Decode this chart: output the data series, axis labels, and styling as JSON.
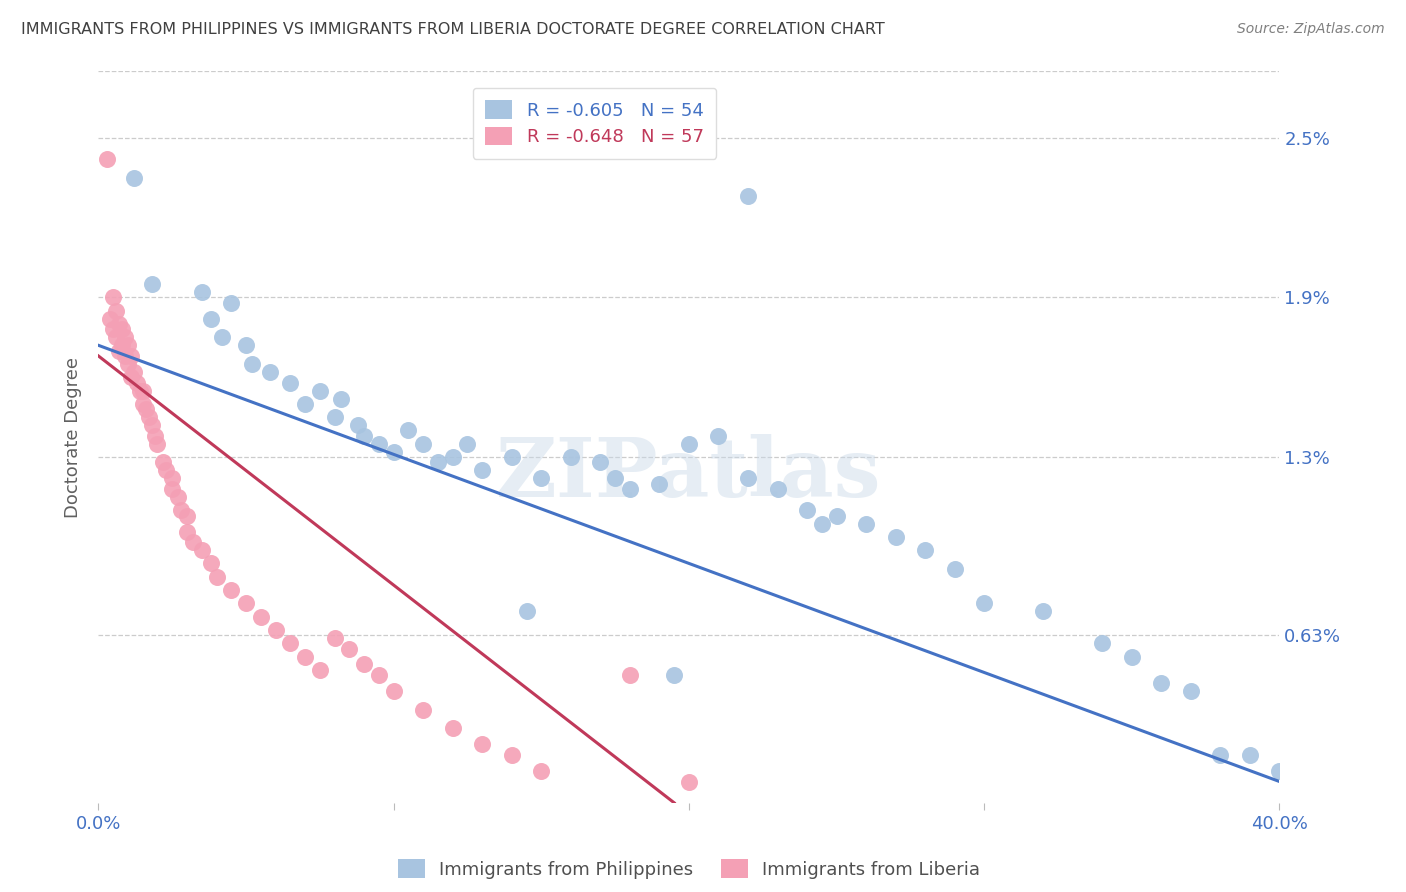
{
  "title": "IMMIGRANTS FROM PHILIPPINES VS IMMIGRANTS FROM LIBERIA DOCTORATE DEGREE CORRELATION CHART",
  "source": "Source: ZipAtlas.com",
  "ylabel": "Doctorate Degree",
  "ytick_labels": [
    "2.5%",
    "1.9%",
    "1.3%",
    "0.63%"
  ],
  "ytick_values": [
    2.5,
    1.9,
    1.3,
    0.63
  ],
  "xlim": [
    0.0,
    40.0
  ],
  "ylim": [
    0.0,
    2.75
  ],
  "legend_blue_label": "Immigrants from Philippines",
  "legend_pink_label": "Immigrants from Liberia",
  "blue_color": "#a8c4e0",
  "pink_color": "#f4a0b5",
  "blue_line_color": "#4472c4",
  "pink_line_color": "#c0395a",
  "title_color": "#404040",
  "source_color": "#808080",
  "axis_label_color": "#4472c4",
  "watermark": "ZIPatlas",
  "philippines_x": [
    1.2,
    1.8,
    3.5,
    3.8,
    4.2,
    4.5,
    5.0,
    5.2,
    5.8,
    6.5,
    7.0,
    7.5,
    8.0,
    8.2,
    8.8,
    9.0,
    9.5,
    10.0,
    10.5,
    11.0,
    11.5,
    12.0,
    12.5,
    13.0,
    14.0,
    15.0,
    16.0,
    17.0,
    17.5,
    18.0,
    19.0,
    20.0,
    21.0,
    22.0,
    23.0,
    24.0,
    24.5,
    25.0,
    26.0,
    27.0,
    28.0,
    29.0,
    30.0,
    32.0,
    34.0,
    35.0,
    36.0,
    37.0,
    38.0,
    39.0,
    40.0,
    22.0,
    19.5,
    14.5
  ],
  "philippines_y": [
    2.35,
    1.95,
    1.92,
    1.82,
    1.75,
    1.88,
    1.72,
    1.65,
    1.62,
    1.58,
    1.5,
    1.55,
    1.45,
    1.52,
    1.42,
    1.38,
    1.35,
    1.32,
    1.4,
    1.35,
    1.28,
    1.3,
    1.35,
    1.25,
    1.3,
    1.22,
    1.3,
    1.28,
    1.22,
    1.18,
    1.2,
    1.35,
    1.38,
    1.22,
    1.18,
    1.1,
    1.05,
    1.08,
    1.05,
    1.0,
    0.95,
    0.88,
    0.75,
    0.72,
    0.6,
    0.55,
    0.45,
    0.42,
    0.18,
    0.18,
    0.12,
    2.28,
    0.48,
    0.72
  ],
  "liberia_x": [
    0.3,
    0.4,
    0.5,
    0.5,
    0.6,
    0.6,
    0.7,
    0.7,
    0.8,
    0.8,
    0.9,
    0.9,
    1.0,
    1.0,
    1.1,
    1.1,
    1.2,
    1.3,
    1.4,
    1.5,
    1.5,
    1.6,
    1.7,
    1.8,
    1.9,
    2.0,
    2.2,
    2.3,
    2.5,
    2.5,
    2.7,
    2.8,
    3.0,
    3.0,
    3.2,
    3.5,
    3.8,
    4.0,
    4.5,
    5.0,
    5.5,
    6.0,
    6.5,
    7.0,
    7.5,
    8.0,
    8.5,
    9.0,
    9.5,
    10.0,
    11.0,
    12.0,
    13.0,
    14.0,
    15.0,
    18.0,
    20.0
  ],
  "liberia_y": [
    2.42,
    1.82,
    1.9,
    1.78,
    1.85,
    1.75,
    1.8,
    1.7,
    1.78,
    1.72,
    1.75,
    1.68,
    1.72,
    1.65,
    1.68,
    1.6,
    1.62,
    1.58,
    1.55,
    1.55,
    1.5,
    1.48,
    1.45,
    1.42,
    1.38,
    1.35,
    1.28,
    1.25,
    1.22,
    1.18,
    1.15,
    1.1,
    1.08,
    1.02,
    0.98,
    0.95,
    0.9,
    0.85,
    0.8,
    0.75,
    0.7,
    0.65,
    0.6,
    0.55,
    0.5,
    0.62,
    0.58,
    0.52,
    0.48,
    0.42,
    0.35,
    0.28,
    0.22,
    0.18,
    0.12,
    0.48,
    0.08
  ],
  "blue_trend_x": [
    0.0,
    40.0
  ],
  "blue_trend_y": [
    1.72,
    0.08
  ],
  "pink_trend_x": [
    0.0,
    19.5
  ],
  "pink_trend_y": [
    1.68,
    0.0
  ]
}
